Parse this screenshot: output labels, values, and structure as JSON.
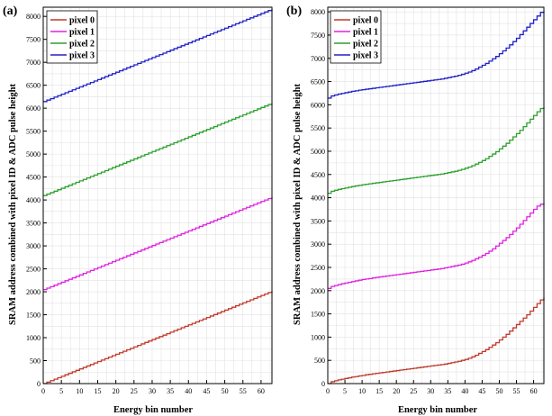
{
  "chart_data": [
    {
      "type": "line",
      "panel_label": "(a)",
      "xlabel": "Energy bin number",
      "ylabel": "SRAM address combined with pixel ID & ADC pulse height",
      "xlim": [
        0,
        63
      ],
      "ylim": [
        0,
        8200
      ],
      "x_ticks": [
        0,
        5,
        10,
        15,
        20,
        25,
        30,
        35,
        40,
        45,
        50,
        55,
        60
      ],
      "y_ticks": [
        0,
        500,
        1000,
        1500,
        2000,
        2500,
        3000,
        3500,
        4000,
        4500,
        5000,
        5500,
        6000,
        6500,
        7000,
        7500,
        8000
      ],
      "grid": true,
      "legend_position": "top-left",
      "step": true,
      "x": [
        0,
        1,
        2,
        3,
        4,
        5,
        6,
        7,
        8,
        9,
        10,
        11,
        12,
        13,
        14,
        15,
        16,
        17,
        18,
        19,
        20,
        21,
        22,
        23,
        24,
        25,
        26,
        27,
        28,
        29,
        30,
        31,
        32,
        33,
        34,
        35,
        36,
        37,
        38,
        39,
        40,
        41,
        42,
        43,
        44,
        45,
        46,
        47,
        48,
        49,
        50,
        51,
        52,
        53,
        54,
        55,
        56,
        57,
        58,
        59,
        60,
        61,
        62,
        63
      ],
      "series": [
        {
          "name": "pixel 0",
          "color": "#c0392b",
          "values": [
            0,
            32,
            64,
            96,
            128,
            160,
            192,
            224,
            256,
            288,
            320,
            352,
            384,
            416,
            448,
            480,
            512,
            544,
            576,
            608,
            640,
            672,
            704,
            736,
            768,
            800,
            832,
            864,
            896,
            928,
            960,
            992,
            1024,
            1056,
            1088,
            1120,
            1152,
            1184,
            1216,
            1248,
            1280,
            1312,
            1344,
            1376,
            1408,
            1440,
            1472,
            1504,
            1536,
            1568,
            1600,
            1632,
            1664,
            1696,
            1728,
            1760,
            1792,
            1824,
            1856,
            1888,
            1920,
            1952,
            1984,
            2016
          ]
        },
        {
          "name": "pixel 1",
          "color": "#e020e0",
          "values": [
            2048,
            2080,
            2112,
            2144,
            2176,
            2208,
            2240,
            2272,
            2304,
            2336,
            2368,
            2400,
            2432,
            2464,
            2496,
            2528,
            2560,
            2592,
            2624,
            2656,
            2688,
            2720,
            2752,
            2784,
            2816,
            2848,
            2880,
            2912,
            2944,
            2976,
            3008,
            3040,
            3072,
            3104,
            3136,
            3168,
            3200,
            3232,
            3264,
            3296,
            3328,
            3360,
            3392,
            3424,
            3456,
            3488,
            3520,
            3552,
            3584,
            3616,
            3648,
            3680,
            3712,
            3744,
            3776,
            3808,
            3840,
            3872,
            3904,
            3936,
            3968,
            4000,
            4032,
            4064
          ]
        },
        {
          "name": "pixel 2",
          "color": "#2ca02c",
          "values": [
            4096,
            4128,
            4160,
            4192,
            4224,
            4256,
            4288,
            4320,
            4352,
            4384,
            4416,
            4448,
            4480,
            4512,
            4544,
            4576,
            4608,
            4640,
            4672,
            4704,
            4736,
            4768,
            4800,
            4832,
            4864,
            4896,
            4928,
            4960,
            4992,
            5024,
            5056,
            5088,
            5120,
            5152,
            5184,
            5216,
            5248,
            5280,
            5312,
            5344,
            5376,
            5408,
            5440,
            5472,
            5504,
            5536,
            5568,
            5600,
            5632,
            5664,
            5696,
            5728,
            5760,
            5792,
            5824,
            5856,
            5888,
            5920,
            5952,
            5984,
            6016,
            6048,
            6080,
            6112
          ]
        },
        {
          "name": "pixel 3",
          "color": "#2020c8",
          "values": [
            6144,
            6176,
            6208,
            6240,
            6272,
            6304,
            6336,
            6368,
            6400,
            6432,
            6464,
            6496,
            6528,
            6560,
            6592,
            6624,
            6656,
            6688,
            6720,
            6752,
            6784,
            6816,
            6848,
            6880,
            6912,
            6944,
            6976,
            7008,
            7040,
            7072,
            7104,
            7136,
            7168,
            7200,
            7232,
            7264,
            7296,
            7328,
            7360,
            7392,
            7424,
            7456,
            7488,
            7520,
            7552,
            7584,
            7616,
            7648,
            7680,
            7712,
            7744,
            7776,
            7808,
            7840,
            7872,
            7904,
            7936,
            7968,
            8000,
            8032,
            8064,
            8096,
            8128,
            8160
          ]
        }
      ]
    },
    {
      "type": "line",
      "panel_label": "(b)",
      "xlabel": "Energy bin number",
      "ylabel": "SRAM address combined with pixel ID & ADC pulse height",
      "xlim": [
        0,
        63
      ],
      "ylim": [
        0,
        8100
      ],
      "x_ticks": [
        0,
        5,
        10,
        15,
        20,
        25,
        30,
        35,
        40,
        45,
        50,
        55,
        60
      ],
      "y_ticks": [
        0,
        500,
        1000,
        1500,
        2000,
        2500,
        3000,
        3500,
        4000,
        4500,
        5000,
        5500,
        6000,
        6500,
        7000,
        7500,
        8000
      ],
      "grid": true,
      "legend_position": "top-left",
      "step": true,
      "x": [
        0,
        1,
        2,
        3,
        4,
        5,
        6,
        7,
        8,
        9,
        10,
        11,
        12,
        13,
        14,
        15,
        16,
        17,
        18,
        19,
        20,
        21,
        22,
        23,
        24,
        25,
        26,
        27,
        28,
        29,
        30,
        31,
        32,
        33,
        34,
        35,
        36,
        37,
        38,
        39,
        40,
        41,
        42,
        43,
        44,
        45,
        46,
        47,
        48,
        49,
        50,
        51,
        52,
        53,
        54,
        55,
        56,
        57,
        58,
        59,
        60,
        61,
        62,
        63
      ],
      "series": [
        {
          "name": "pixel 0",
          "color": "#c0392b",
          "values": [
            0,
            40,
            60,
            80,
            95,
            110,
            125,
            140,
            150,
            165,
            175,
            190,
            200,
            210,
            220,
            230,
            240,
            250,
            260,
            270,
            280,
            290,
            300,
            310,
            320,
            330,
            340,
            350,
            360,
            370,
            380,
            390,
            400,
            410,
            420,
            435,
            450,
            465,
            480,
            500,
            520,
            545,
            575,
            610,
            650,
            690,
            730,
            780,
            830,
            880,
            940,
            1000,
            1060,
            1130,
            1200,
            1270,
            1340,
            1410,
            1480,
            1560,
            1640,
            1720,
            1800,
            1850
          ]
        },
        {
          "name": "pixel 1",
          "color": "#e020e0",
          "values": [
            2048,
            2090,
            2110,
            2130,
            2150,
            2165,
            2180,
            2195,
            2210,
            2225,
            2240,
            2250,
            2260,
            2275,
            2285,
            2295,
            2305,
            2315,
            2325,
            2335,
            2345,
            2355,
            2365,
            2375,
            2385,
            2395,
            2405,
            2415,
            2425,
            2435,
            2445,
            2455,
            2465,
            2475,
            2490,
            2505,
            2520,
            2535,
            2550,
            2570,
            2595,
            2620,
            2650,
            2685,
            2720,
            2760,
            2800,
            2850,
            2900,
            2960,
            3020,
            3080,
            3140,
            3210,
            3280,
            3350,
            3430,
            3510,
            3590,
            3670,
            3750,
            3820,
            3860,
            3880
          ]
        },
        {
          "name": "pixel 2",
          "color": "#2ca02c",
          "values": [
            4096,
            4140,
            4160,
            4180,
            4195,
            4210,
            4225,
            4240,
            4255,
            4265,
            4280,
            4290,
            4300,
            4310,
            4320,
            4330,
            4340,
            4350,
            4360,
            4370,
            4380,
            4390,
            4400,
            4410,
            4420,
            4430,
            4440,
            4450,
            4460,
            4470,
            4480,
            4490,
            4500,
            4510,
            4525,
            4540,
            4555,
            4570,
            4590,
            4610,
            4635,
            4660,
            4690,
            4725,
            4760,
            4800,
            4840,
            4890,
            4940,
            4990,
            5050,
            5110,
            5170,
            5240,
            5310,
            5380,
            5450,
            5530,
            5610,
            5690,
            5770,
            5850,
            5920,
            5950
          ]
        },
        {
          "name": "pixel 3",
          "color": "#2020c8",
          "values": [
            6144,
            6190,
            6210,
            6230,
            6245,
            6260,
            6275,
            6290,
            6300,
            6315,
            6325,
            6335,
            6345,
            6355,
            6365,
            6375,
            6385,
            6395,
            6405,
            6415,
            6425,
            6435,
            6445,
            6455,
            6465,
            6475,
            6485,
            6495,
            6505,
            6515,
            6525,
            6535,
            6545,
            6555,
            6570,
            6585,
            6600,
            6615,
            6635,
            6655,
            6680,
            6705,
            6735,
            6770,
            6810,
            6850,
            6890,
            6940,
            6990,
            7040,
            7100,
            7160,
            7220,
            7290,
            7360,
            7430,
            7510,
            7590,
            7670,
            7750,
            7830,
            7910,
            7990,
            8010
          ]
        }
      ]
    }
  ]
}
